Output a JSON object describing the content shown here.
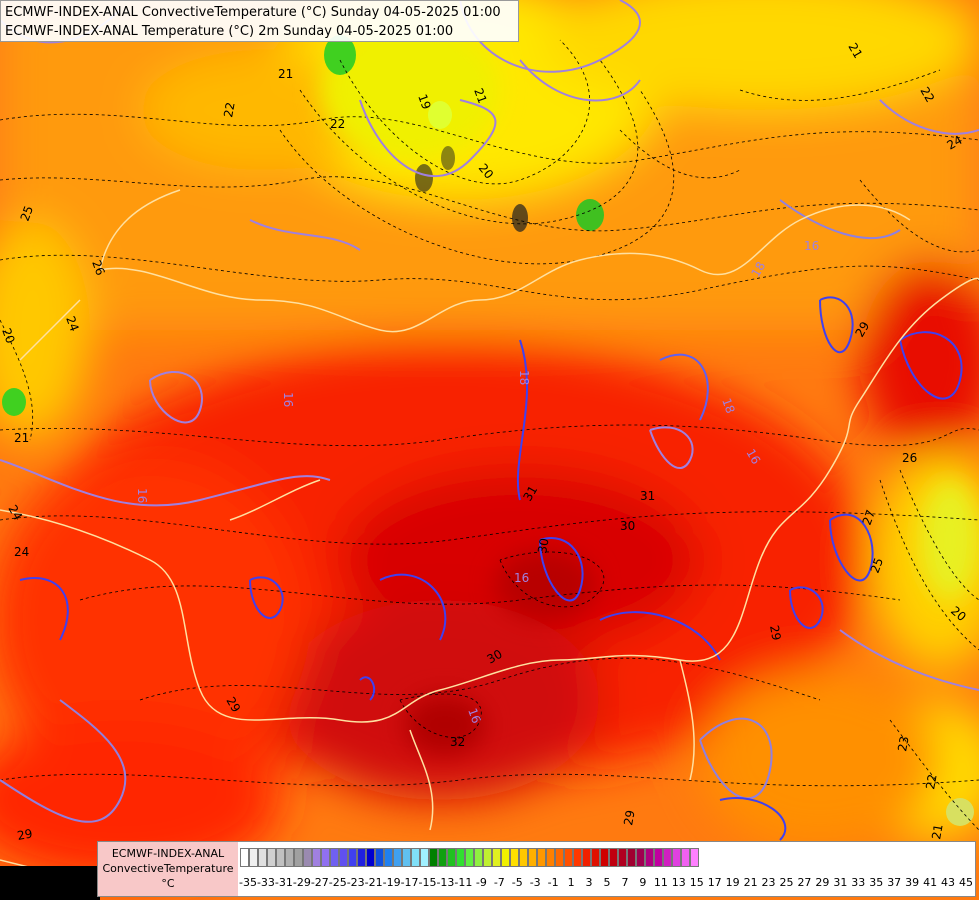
{
  "header": {
    "line1": "ECMWF-INDEX-ANAL ConvectiveTemperature (°C) Sunday 04-05-2025 01:00",
    "line2": "ECMWF-INDEX-ANAL Temperature (°C) 2m Sunday 04-05-2025 01:00"
  },
  "legend": {
    "label_line1": "ECMWF-INDEX-ANAL",
    "label_line2": "ConvectiveTemperature",
    "label_line3": "°C",
    "ticks": [
      "-35",
      "-33",
      "-31",
      "-29",
      "-27",
      "-25",
      "-23",
      "-21",
      "-19",
      "-17",
      "-15",
      "-13",
      "-11",
      "-9",
      "-7",
      "-5",
      "-3",
      "-1",
      "1",
      "3",
      "5",
      "7",
      "9",
      "11",
      "13",
      "15",
      "17",
      "19",
      "21",
      "23",
      "25",
      "27",
      "29",
      "31",
      "33",
      "35",
      "37",
      "39",
      "41",
      "43",
      "45"
    ],
    "colors": [
      "#ffffff",
      "#f0f0f0",
      "#e0e0e0",
      "#d0d0d0",
      "#c0c0c0",
      "#b0b0b0",
      "#a0a0a0",
      "#9a8ab0",
      "#a080e0",
      "#9070f0",
      "#7060f0",
      "#6050f0",
      "#4040f0",
      "#2020e0",
      "#0000d0",
      "#1050e0",
      "#2080f0",
      "#40a0f0",
      "#60c0f0",
      "#80e0f8",
      "#a0f0ff",
      "#008000",
      "#10a010",
      "#20c020",
      "#30e030",
      "#60f040",
      "#90f040",
      "#c0f030",
      "#e0f020",
      "#f0f000",
      "#ffe000",
      "#ffc800",
      "#ffb000",
      "#ff9800",
      "#ff8000",
      "#ff6800",
      "#ff5000",
      "#ff3800",
      "#f02000",
      "#e01000",
      "#d00000",
      "#c00010",
      "#b00020",
      "#a00030",
      "#a00050",
      "#b00080",
      "#c000a0",
      "#d020c0",
      "#e040e0",
      "#f060f0",
      "#ff80ff"
    ]
  },
  "contour_labels": [
    {
      "text": "21"
    },
    {
      "text": "22"
    },
    {
      "text": "22"
    },
    {
      "text": "19"
    },
    {
      "text": "21"
    },
    {
      "text": "20"
    },
    {
      "text": "21"
    },
    {
      "text": "22"
    },
    {
      "text": "24"
    },
    {
      "text": "25"
    },
    {
      "text": "26"
    },
    {
      "text": "24"
    },
    {
      "text": "20"
    },
    {
      "text": "21"
    },
    {
      "text": "16"
    },
    {
      "text": "18"
    },
    {
      "text": "16"
    },
    {
      "text": "18"
    },
    {
      "text": "29"
    },
    {
      "text": "16"
    },
    {
      "text": "18"
    },
    {
      "text": "16"
    },
    {
      "text": "26"
    },
    {
      "text": "27"
    },
    {
      "text": "25"
    },
    {
      "text": "20"
    },
    {
      "text": "30"
    },
    {
      "text": "31"
    },
    {
      "text": "30"
    },
    {
      "text": "16"
    },
    {
      "text": "30"
    },
    {
      "text": "29"
    },
    {
      "text": "32"
    },
    {
      "text": "16"
    },
    {
      "text": "29"
    },
    {
      "text": "24"
    },
    {
      "text": "23"
    },
    {
      "text": "22"
    },
    {
      "text": "29"
    },
    {
      "text": "21"
    },
    {
      "text": "31"
    },
    {
      "text": "24"
    },
    {
      "text": "29"
    }
  ]
}
